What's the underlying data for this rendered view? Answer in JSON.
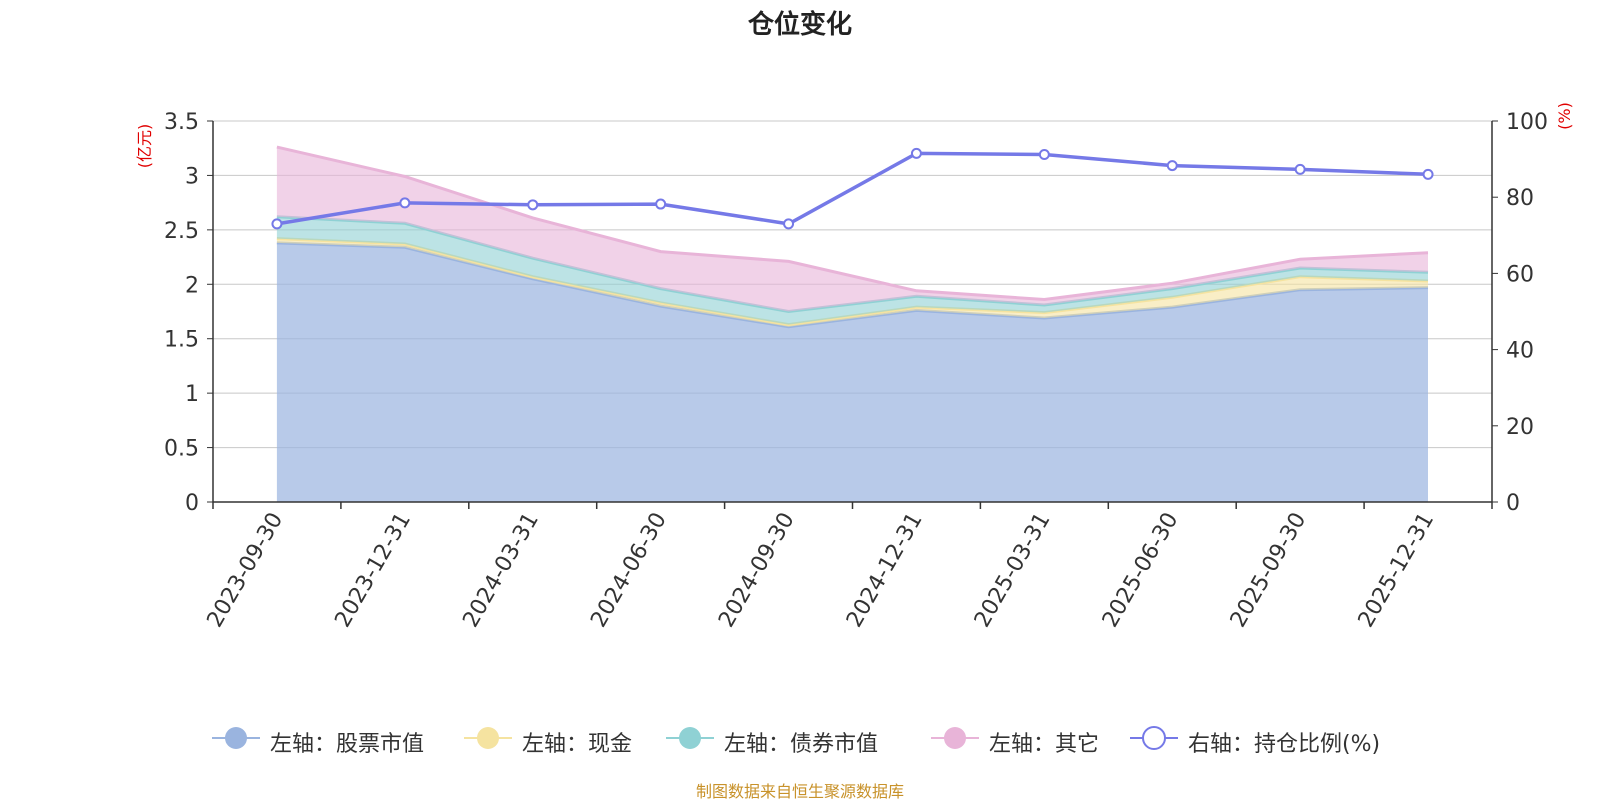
{
  "chart_data": {
    "type": "area",
    "title": "仓位变化",
    "categories": [
      "2023-09-30",
      "2023-12-31",
      "2024-03-31",
      "2024-06-30",
      "2024-09-30",
      "2024-12-31",
      "2025-03-31",
      "2025-06-30",
      "2025-09-30",
      "2025-12-31"
    ],
    "left_axis": {
      "unit": "(亿元)",
      "ylim": [
        0,
        3.5
      ],
      "ticks": [
        "0",
        "0.5",
        "1",
        "1.5",
        "2",
        "2.5",
        "3",
        "3.5"
      ]
    },
    "right_axis": {
      "unit": "(%)",
      "ylim": [
        0,
        100
      ],
      "ticks": [
        "0",
        "20",
        "40",
        "60",
        "80",
        "100"
      ]
    },
    "grid": true,
    "stacked": true,
    "series": [
      {
        "name": "左轴：股票市值",
        "axis": "left",
        "kind": "area",
        "color": "#9ab4df",
        "values": [
          2.38,
          2.34,
          2.05,
          1.8,
          1.61,
          1.76,
          1.69,
          1.79,
          1.95,
          1.97
        ]
      },
      {
        "name": "左轴：现金",
        "axis": "left",
        "kind": "area",
        "color": "#f5e3a0",
        "values": [
          0.04,
          0.03,
          0.02,
          0.03,
          0.02,
          0.03,
          0.05,
          0.09,
          0.12,
          0.06
        ]
      },
      {
        "name": "左轴：债券市值",
        "axis": "left",
        "kind": "area",
        "color": "#8fd1d4",
        "values": [
          0.2,
          0.19,
          0.17,
          0.13,
          0.12,
          0.1,
          0.07,
          0.08,
          0.08,
          0.08
        ]
      },
      {
        "name": "左轴：其它",
        "axis": "left",
        "kind": "area",
        "color": "#e8b4d8",
        "values": [
          0.64,
          0.43,
          0.37,
          0.34,
          0.46,
          0.05,
          0.05,
          0.05,
          0.08,
          0.18
        ]
      },
      {
        "name": "右轴：持仓比例(%)",
        "axis": "right",
        "kind": "line",
        "color": "#7579e7",
        "values": [
          73.0,
          78.5,
          78.0,
          78.2,
          73.0,
          91.5,
          91.2,
          88.3,
          87.3,
          86.0
        ]
      }
    ],
    "legend_position": "bottom"
  },
  "source_note": "制图数据来自恒生聚源数据库"
}
